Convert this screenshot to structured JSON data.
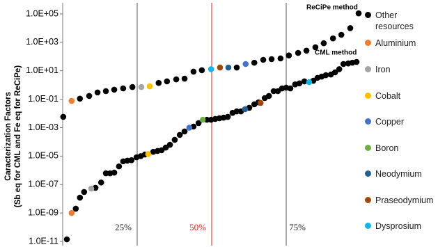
{
  "chart_data": {
    "type": "scatter",
    "ylabel": [
      "Caracterization Factors",
      "(Sb eq for CML and Fe eq for ReCiPe)"
    ],
    "log_y": true,
    "xlim": [
      0,
      100
    ],
    "ylim": [
      1e-11,
      100000
    ],
    "yticks": [
      {
        "value": 1e-11,
        "label": "1.0E-11"
      },
      {
        "value": 1e-09,
        "label": "1.0E-09"
      },
      {
        "value": 1e-07,
        "label": "1.0E-07"
      },
      {
        "value": 1e-05,
        "label": "1.0E-05"
      },
      {
        "value": 0.001,
        "label": "1.0E-03"
      },
      {
        "value": 0.1,
        "label": "1.0E-01"
      },
      {
        "value": 10,
        "label": "1.0E+01"
      },
      {
        "value": 1000,
        "label": "1.0E+03"
      },
      {
        "value": 100000,
        "label": "1.0E+05"
      }
    ],
    "vlines": [
      {
        "value": 25,
        "label": "25%",
        "color": "#555555"
      },
      {
        "value": 50,
        "label": "50%",
        "color": "#e0201b"
      },
      {
        "value": 75,
        "label": "75%",
        "color": "#555555"
      }
    ],
    "annotations": [
      "ReCiPe method",
      "CML method"
    ],
    "legend": "right",
    "series": [
      {
        "name": "Other resources",
        "color": "#000000",
        "x": [
          0.2,
          5.8,
          8.9,
          11.7,
          14.5,
          17.3,
          20.3,
          23.4,
          32.2,
          35.0,
          38.1,
          40.9,
          43.9,
          46.7,
          58.4,
          64.3,
          67.3,
          70.1,
          73.1,
          75.9,
          79.0,
          81.8,
          84.8,
          87.6,
          90.7,
          93.5,
          96.5,
          99.3,
          1.4,
          4.4,
          5.8,
          7.2,
          11.0,
          12.9,
          14.5,
          15.9,
          17.3,
          18.9,
          20.3,
          21.7,
          23.1,
          24.8,
          26.2,
          27.6,
          30.4,
          31.8,
          33.2,
          34.6,
          36.0,
          37.6,
          39.3,
          40.9,
          43.9,
          45.6,
          48.4,
          49.8,
          51.2,
          52.6,
          54.0,
          55.4,
          57.0,
          58.4,
          59.8,
          62.6,
          64.3,
          65.7,
          67.8,
          69.2,
          70.8,
          72.2,
          73.6,
          75.0,
          76.4,
          78.0,
          79.4,
          81.1,
          84.1,
          85.5,
          86.9,
          88.3,
          90.0,
          91.4,
          92.8,
          94.2,
          95.8,
          97.2,
          98.6
        ],
        "values": [
          0.0058,
          0.11,
          0.17,
          0.3,
          0.37,
          0.47,
          0.58,
          0.72,
          1.4,
          1.8,
          2.5,
          2.8,
          8.7,
          11,
          17,
          37,
          59,
          66,
          74,
          120,
          180,
          260,
          450,
          870,
          1900,
          3400,
          10000,
          110000,
          1.4e-11,
          2e-09,
          1.2e-08,
          3e-08,
          5.9e-08,
          1.4e-07,
          6.2e-07,
          6.2e-07,
          6.9e-07,
          1.9e-06,
          4.3e-06,
          4.8e-06,
          5.2e-06,
          8.3e-06,
          1e-05,
          1.3e-05,
          2e-05,
          2.3e-05,
          2.6e-05,
          4e-05,
          6.3e-05,
          0.00014,
          0.00031,
          0.00054,
          0.0012,
          0.0021,
          0.0036,
          0.0036,
          0.0041,
          0.0046,
          0.0051,
          0.0058,
          0.011,
          0.014,
          0.014,
          0.025,
          0.044,
          0.06,
          0.12,
          0.17,
          0.37,
          0.37,
          0.58,
          0.65,
          0.58,
          1.1,
          1.3,
          1.8,
          2.0,
          3.2,
          3.9,
          4.9,
          5.5,
          7.8,
          13,
          30,
          33,
          37,
          42
        ]
      },
      {
        "name": "Aluminium",
        "color": "#ed7d31",
        "x": [
          3.0,
          3.0
        ],
        "values": [
          0.076,
          1e-09
        ]
      },
      {
        "name": "Iron",
        "color": "#a5a5a5",
        "x": [
          26.4,
          9.6
        ],
        "values": [
          0.72,
          5.2e-08
        ]
      },
      {
        "name": "Cobalt",
        "color": "#ffc000",
        "x": [
          29.2,
          28.7
        ],
        "values": [
          0.81,
          1.4e-05
        ]
      },
      {
        "name": "Copper",
        "color": "#4472c4",
        "x": [
          61.4,
          42.5
        ],
        "values": [
          30,
          0.001
        ]
      },
      {
        "name": "Boron",
        "color": "#70ad47",
        "x": [
          47.0
        ],
        "values": [
          0.0036
        ]
      },
      {
        "name": "Neodymium",
        "color": "#255e91",
        "x": [
          55.6,
          61.2
        ],
        "values": [
          17,
          0.02
        ]
      },
      {
        "name": "Praseodymium",
        "color": "#9e480e",
        "x": [
          52.8,
          66.4
        ],
        "values": [
          17,
          0.055
        ]
      },
      {
        "name": "Dysprosium",
        "color": "#17b5e3",
        "x": [
          49.8,
          82.7
        ],
        "values": [
          13,
          1.6
        ]
      }
    ]
  }
}
